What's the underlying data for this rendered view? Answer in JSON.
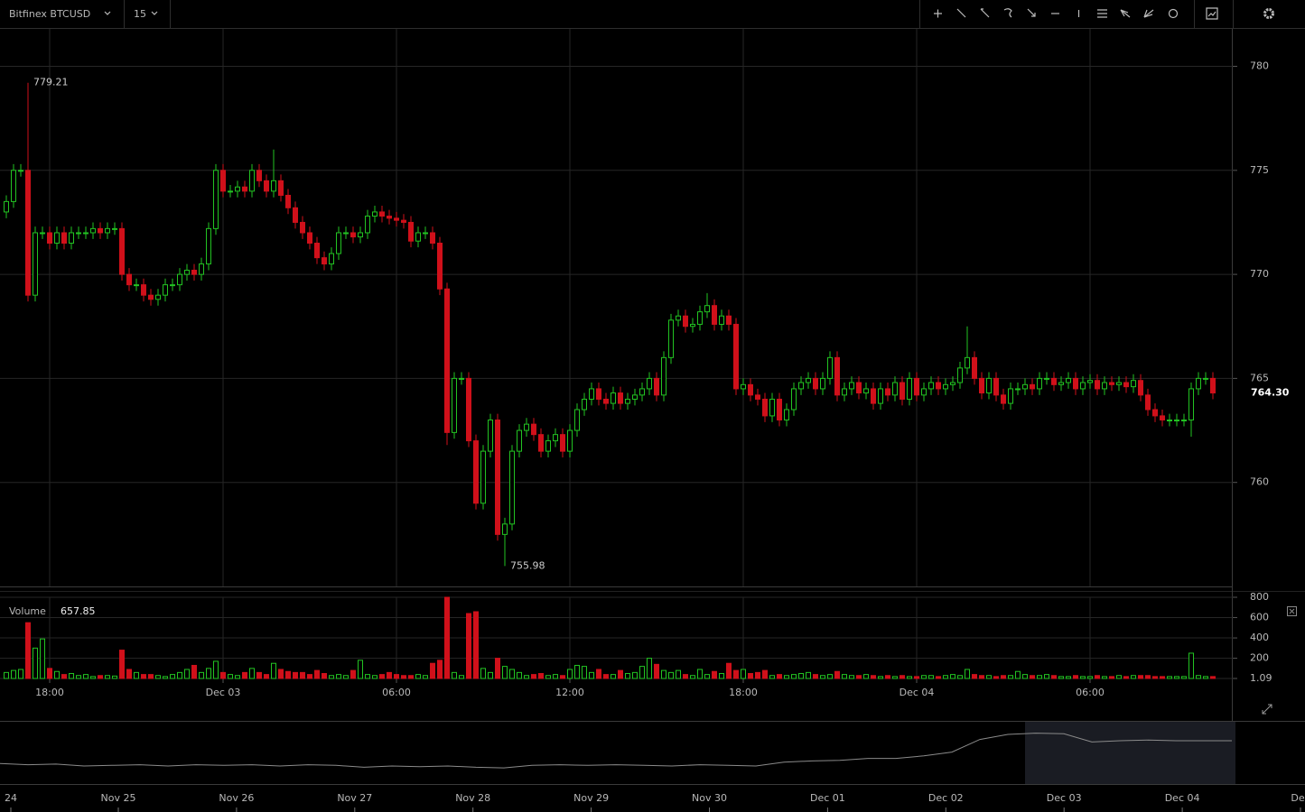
{
  "toolbar": {
    "symbol": "Bitfinex BTCUSD",
    "interval": "15"
  },
  "chart_data": [
    {
      "type": "candlestick",
      "categories": [
        null,
        null,
        null,
        null,
        null,
        null,
        "18:00",
        null,
        null,
        null,
        null,
        null,
        null,
        null,
        null,
        null,
        null,
        null,
        null,
        null,
        null,
        null,
        null,
        null,
        null,
        null,
        null,
        null,
        null,
        null,
        "Dec 03",
        null,
        null,
        null,
        null,
        null,
        null,
        null,
        null,
        null,
        null,
        null,
        null,
        null,
        null,
        null,
        null,
        null,
        null,
        null,
        null,
        null,
        null,
        null,
        "06:00",
        null,
        null,
        null,
        null,
        null,
        null,
        null,
        null,
        null,
        null,
        null,
        null,
        null,
        null,
        null,
        null,
        null,
        null,
        null,
        null,
        null,
        null,
        null,
        "12:00",
        null,
        null,
        null,
        null,
        null,
        null,
        null,
        null,
        null,
        null,
        null,
        null,
        null,
        null,
        null,
        null,
        null,
        null,
        null,
        null,
        null,
        null,
        null,
        "18:00",
        null,
        null,
        null,
        null,
        null,
        null,
        null,
        null,
        null,
        null,
        null,
        null,
        null,
        null,
        null,
        null,
        null,
        null,
        null,
        null,
        null,
        null,
        null,
        "Dec 04",
        null,
        null,
        null,
        null,
        null,
        null,
        null,
        null,
        null,
        null,
        null,
        null,
        null,
        null,
        null,
        null,
        null,
        null,
        null,
        null,
        null,
        null,
        null,
        "06:00",
        null,
        null,
        null,
        null,
        null,
        null,
        null,
        null,
        null,
        null,
        null,
        null,
        null,
        null,
        null,
        null,
        null
      ],
      "open": [
        773,
        773.5,
        775,
        775,
        769,
        772,
        772,
        771.5,
        772,
        771.5,
        772,
        772,
        772,
        772.2,
        772,
        772.2,
        772.2,
        770,
        769.5,
        769.5,
        769,
        768.8,
        769,
        769.5,
        769.5,
        770,
        770.2,
        770,
        770.5,
        772.2,
        775,
        774,
        774,
        774.2,
        774,
        775,
        774.5,
        774,
        774.5,
        773.8,
        773.2,
        772.5,
        772,
        771.5,
        770.8,
        770.5,
        771,
        772,
        772,
        771.8,
        772,
        772.8,
        773,
        772.8,
        772.7,
        772.6,
        772.5,
        771.6,
        772,
        772,
        771.5,
        769.3,
        762.4,
        765,
        765,
        762,
        759,
        761.5,
        763,
        757.5,
        758,
        761.5,
        762.5,
        762.8,
        762.3,
        761.5,
        762,
        762.3,
        761.5,
        762.5,
        763.5,
        764,
        764.5,
        764,
        763.8,
        764.3,
        763.8,
        764,
        764.2,
        764.5,
        765,
        764.2,
        766,
        767.8,
        768,
        767.5,
        767.6,
        768.2,
        768.5,
        767.6,
        768,
        767.6,
        764.5,
        764.7,
        764.2,
        764,
        763.2,
        764,
        763,
        763.5,
        764.5,
        764.8,
        765,
        764.5,
        765,
        766,
        764.2,
        764.5,
        764.8,
        764.3,
        764.5,
        763.8,
        764.5,
        764.2,
        764.8,
        764,
        765,
        764.2,
        764.5,
        764.8,
        764.5,
        764.7,
        764.8,
        765.5,
        766,
        765,
        764.3,
        765,
        764.2,
        763.8,
        764.5,
        764.5,
        764.7,
        764.5,
        765,
        765,
        764.7,
        764.8,
        765,
        764.5,
        764.8,
        764.9,
        764.5,
        764.8,
        764.7,
        764.8,
        764.6,
        764.9,
        764.2,
        763.5,
        763.2,
        763,
        763,
        763,
        763,
        764.5,
        765,
        765
      ],
      "high": [
        773.8,
        775.3,
        775.3,
        779.21,
        772.3,
        772.3,
        772.3,
        772.3,
        772.3,
        772.3,
        772.3,
        772.3,
        772.5,
        772.5,
        772.5,
        772.5,
        772.5,
        770.3,
        769.8,
        769.8,
        769.3,
        769.3,
        769.8,
        769.8,
        770.3,
        770.5,
        770.5,
        770.8,
        772.5,
        775.3,
        775.3,
        774.3,
        774.5,
        774.5,
        775.3,
        775.3,
        774.8,
        776,
        774.8,
        774.1,
        773.5,
        772.8,
        772.3,
        771.8,
        771.1,
        771.3,
        772.3,
        772.3,
        772.3,
        772.3,
        773.1,
        773.3,
        773.3,
        773.1,
        773,
        772.9,
        772.8,
        772.3,
        772.3,
        772.3,
        771.8,
        769.6,
        765.3,
        765.3,
        765.3,
        762.3,
        761.8,
        763.3,
        763.3,
        758.3,
        761.8,
        762.8,
        763.1,
        763.1,
        762.6,
        762.3,
        762.6,
        762.6,
        762.8,
        763.8,
        764.3,
        764.8,
        764.8,
        764.3,
        764.6,
        764.6,
        764.3,
        764.5,
        764.8,
        765.3,
        765.3,
        766.3,
        768.1,
        768.3,
        768.3,
        767.9,
        768.5,
        769.1,
        768.8,
        768.3,
        768.3,
        767.9,
        765,
        765,
        764.5,
        764.3,
        764.3,
        764.3,
        763.8,
        764.8,
        765.1,
        765.3,
        765.3,
        765.3,
        766.3,
        766.3,
        764.8,
        765.1,
        765.1,
        764.8,
        764.8,
        764.8,
        764.8,
        765.1,
        765.1,
        765.3,
        765.3,
        764.8,
        765.1,
        765.1,
        765,
        765.1,
        765.8,
        767.5,
        766.3,
        765.3,
        765.3,
        765.3,
        764.5,
        764.8,
        764.8,
        765,
        765,
        765.3,
        765.3,
        765.3,
        765.1,
        765.3,
        765.3,
        765.1,
        765.2,
        765.2,
        765.1,
        765.1,
        765.1,
        765.1,
        765.2,
        765.2,
        764.5,
        763.8,
        763.5,
        763.3,
        763.3,
        763.3,
        764.8,
        765.3,
        765.3,
        765.3
      ],
      "low": [
        772.7,
        773.2,
        774.7,
        768.7,
        768.7,
        771.7,
        771.2,
        771.2,
        771.2,
        771.2,
        771.7,
        771.7,
        771.7,
        771.7,
        771.7,
        771.9,
        769.7,
        769.2,
        769.2,
        768.7,
        768.5,
        768.5,
        768.7,
        769.2,
        769.2,
        769.7,
        769.7,
        769.7,
        770.2,
        771.9,
        773.7,
        773.7,
        773.7,
        773.7,
        773.7,
        774.2,
        773.7,
        773.7,
        773.5,
        772.9,
        772.2,
        771.7,
        771.2,
        770.5,
        770.2,
        770.2,
        770.7,
        771.7,
        771.5,
        771.5,
        771.7,
        772.5,
        772.5,
        772.4,
        772.3,
        772.2,
        771.3,
        771.3,
        771.7,
        771.2,
        769,
        761.8,
        762.1,
        764.7,
        761.7,
        758.7,
        758.7,
        761.2,
        757.2,
        755.98,
        757.7,
        761.2,
        762.2,
        762,
        761.2,
        761.2,
        761.7,
        761.2,
        761.2,
        762.2,
        763.2,
        763.7,
        763.7,
        763.5,
        763.5,
        763.5,
        763.5,
        763.7,
        763.9,
        764.2,
        763.9,
        763.9,
        765.7,
        767.5,
        767.2,
        767.2,
        767.3,
        767.9,
        767.3,
        767.3,
        767.3,
        764.2,
        764.2,
        763.9,
        763.7,
        762.9,
        762.9,
        762.7,
        762.7,
        763.2,
        764.2,
        764.5,
        764.2,
        764.2,
        764.7,
        763.9,
        763.9,
        764.2,
        764,
        764,
        763.5,
        763.5,
        763.9,
        763.9,
        763.7,
        763.7,
        763.9,
        763.9,
        764.2,
        764.2,
        764.2,
        764.4,
        764.5,
        765.2,
        764.7,
        764,
        764,
        763.9,
        763.5,
        763.5,
        764.2,
        764.2,
        764.2,
        764.2,
        764.7,
        764.4,
        764.4,
        764.5,
        764.2,
        764.2,
        764.5,
        764.2,
        764.2,
        764.4,
        764.4,
        764.3,
        764.3,
        763.9,
        763.2,
        762.9,
        762.7,
        762.7,
        762.7,
        762.7,
        762.2,
        764.2,
        764.7,
        764
      ],
      "close": [
        773.5,
        775,
        775,
        769,
        772,
        772,
        771.5,
        772,
        771.5,
        772,
        772,
        772,
        772.2,
        772,
        772.2,
        772.2,
        770,
        769.5,
        769.5,
        769,
        768.8,
        769,
        769.5,
        769.5,
        770,
        770.2,
        770,
        770.5,
        772.2,
        775,
        774,
        774,
        774.2,
        774,
        775,
        774.5,
        774,
        774.5,
        773.8,
        773.2,
        772.5,
        772,
        771.5,
        770.8,
        770.5,
        771,
        772,
        772,
        771.8,
        772,
        772.8,
        773,
        772.8,
        772.7,
        772.6,
        772.5,
        771.6,
        772,
        772,
        771.5,
        769.3,
        762.4,
        765,
        765,
        762,
        759,
        761.5,
        763,
        757.5,
        758,
        761.5,
        762.5,
        762.8,
        762.3,
        761.5,
        762,
        762.3,
        761.5,
        762.5,
        763.5,
        764,
        764.5,
        764,
        763.8,
        764.3,
        763.8,
        764,
        764.2,
        764.5,
        765,
        764.2,
        766,
        767.8,
        768,
        767.5,
        767.6,
        768.2,
        768.5,
        767.6,
        768,
        767.6,
        764.5,
        764.7,
        764.2,
        764,
        763.2,
        764,
        763,
        763.5,
        764.5,
        764.8,
        765,
        764.5,
        765,
        766,
        764.2,
        764.5,
        764.8,
        764.3,
        764.5,
        763.8,
        764.5,
        764.2,
        764.8,
        764,
        765,
        764.2,
        764.5,
        764.8,
        764.5,
        764.7,
        764.8,
        765.5,
        766,
        765,
        764.3,
        765,
        764.2,
        763.8,
        764.5,
        764.5,
        764.7,
        764.5,
        765,
        765,
        764.7,
        764.8,
        765,
        764.5,
        764.8,
        764.9,
        764.5,
        764.8,
        764.7,
        764.8,
        764.6,
        764.9,
        764.2,
        763.5,
        763.2,
        763,
        763,
        763,
        763,
        764.5,
        765,
        765,
        764.3
      ],
      "ylim": [
        755,
        781.8
      ],
      "yticks": [
        760,
        765,
        770,
        775,
        780
      ],
      "grid": true,
      "colors": {
        "up": "#22c322",
        "down": "#d0101a"
      },
      "annotations": [
        779.21,
        755.98
      ],
      "last_price": {
        "value": 764.3,
        "label": "764.30"
      }
    },
    {
      "type": "bar",
      "title": "Volume",
      "readout": 657.85,
      "values": [
        60,
        80,
        90,
        550,
        300,
        390,
        100,
        70,
        40,
        50,
        30,
        40,
        20,
        30,
        30,
        25,
        280,
        90,
        60,
        40,
        40,
        30,
        20,
        40,
        60,
        90,
        130,
        60,
        100,
        170,
        60,
        40,
        30,
        60,
        100,
        60,
        40,
        150,
        90,
        70,
        60,
        60,
        40,
        80,
        50,
        30,
        40,
        30,
        80,
        180,
        40,
        30,
        40,
        60,
        40,
        30,
        30,
        40,
        30,
        150,
        180,
        800,
        60,
        30,
        640,
        657.85,
        100,
        60,
        200,
        120,
        90,
        60,
        30,
        40,
        50,
        30,
        40,
        30,
        90,
        130,
        120,
        60,
        90,
        40,
        40,
        80,
        50,
        60,
        120,
        200,
        140,
        80,
        60,
        80,
        40,
        30,
        90,
        40,
        70,
        50,
        150,
        80,
        90,
        50,
        60,
        80,
        30,
        40,
        30,
        40,
        50,
        60,
        40,
        30,
        40,
        70,
        40,
        30,
        30,
        40,
        30,
        20,
        30,
        20,
        30,
        20,
        20,
        30,
        30,
        20,
        30,
        40,
        30,
        90,
        40,
        30,
        30,
        20,
        30,
        30,
        70,
        40,
        30,
        30,
        40,
        30,
        20,
        20,
        30,
        20,
        20,
        30,
        20,
        20,
        30,
        20,
        30,
        30,
        30,
        20,
        20,
        20,
        20,
        20,
        250,
        30,
        20,
        20
      ],
      "ylim": [
        1.09,
        800
      ],
      "yticks": [
        1.09,
        200,
        400,
        600,
        800
      ]
    },
    {
      "type": "line",
      "color": "#8a8a8a",
      "x_labels": [
        "24",
        "Nov 25",
        "Nov 26",
        "Nov 27",
        "Nov 28",
        "Nov 29",
        "Nov 30",
        "Dec 01",
        "Dec 02",
        "Dec 03",
        "Dec 04",
        "Dec"
      ],
      "values": [
        757,
        756,
        756.5,
        755,
        755.5,
        756,
        755,
        756,
        755.5,
        756,
        755,
        756,
        755.5,
        754,
        755,
        754.5,
        755,
        754,
        753.5,
        755.5,
        756,
        755.5,
        756,
        755.5,
        755,
        756,
        755.5,
        755,
        758,
        759,
        759.5,
        761,
        761,
        763,
        766,
        776,
        780,
        781,
        780.5,
        774,
        775,
        775.5,
        775,
        775,
        775
      ],
      "ylim": [
        740,
        790
      ]
    }
  ]
}
